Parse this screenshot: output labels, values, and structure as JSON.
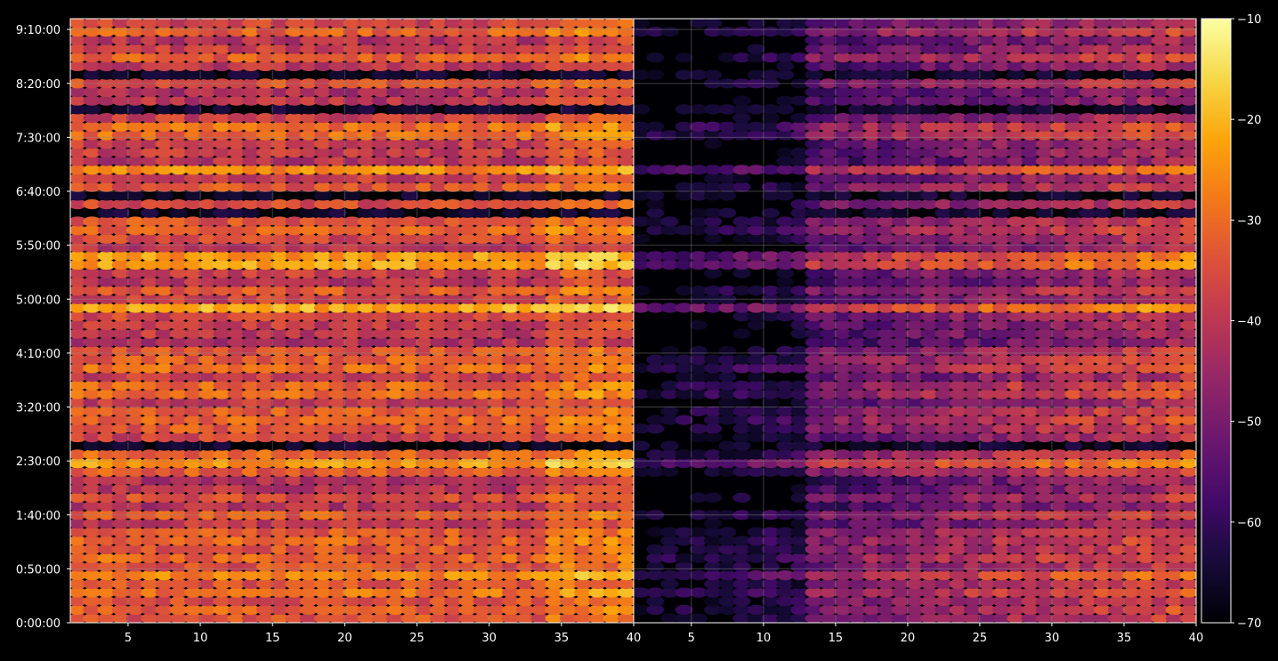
{
  "chart_data": {
    "type": "heatmap",
    "title": "",
    "colormap": "inferno",
    "colorbar": {
      "min": -70,
      "max": -10,
      "ticks": [
        -10,
        -20,
        -30,
        -40,
        -50,
        -60,
        -70
      ],
      "tick_labels": [
        "−10",
        "−20",
        "−30",
        "−40",
        "−50",
        "−60",
        "−70"
      ]
    },
    "y_axis": {
      "label": "",
      "range_seconds": [
        0,
        33600
      ],
      "ticks_seconds": [
        0,
        3000,
        6000,
        9000,
        12000,
        15000,
        18000,
        21000,
        24000,
        27000,
        30000,
        33000
      ],
      "tick_labels": [
        "0:00:00",
        "0:50:00",
        "1:40:00",
        "2:30:00",
        "3:20:00",
        "4:10:00",
        "5:00:00",
        "5:50:00",
        "6:40:00",
        "7:30:00",
        "8:20:00",
        "9:10:00"
      ]
    },
    "panels": [
      {
        "name": "left",
        "x_range": [
          1,
          40
        ],
        "x_ticks": [
          5,
          10,
          15,
          20,
          25,
          30,
          35,
          40
        ],
        "x_tick_labels": [
          "5",
          "10",
          "15",
          "20",
          "25",
          "30",
          "35",
          "40"
        ],
        "value_floor": -50
      },
      {
        "name": "right",
        "x_range": [
          1,
          40
        ],
        "x_ticks": [
          5,
          10,
          15,
          20,
          25,
          30,
          35,
          40
        ],
        "x_tick_labels": [
          "5",
          "10",
          "15",
          "20",
          "25",
          "30",
          "35",
          "40"
        ],
        "value_floor": -68
      }
    ],
    "bright_rows_seconds": [
      300,
      2400,
      2880,
      8400,
      10800,
      11400,
      13800,
      14700,
      17400,
      19800,
      20280,
      24780,
      26700,
      30300,
      31200,
      33600
    ],
    "grid": true,
    "legend": "colorbar right"
  },
  "colors": {
    "background": "#000000",
    "foreground": "#ffffff",
    "grid": "#8c8c8c"
  }
}
